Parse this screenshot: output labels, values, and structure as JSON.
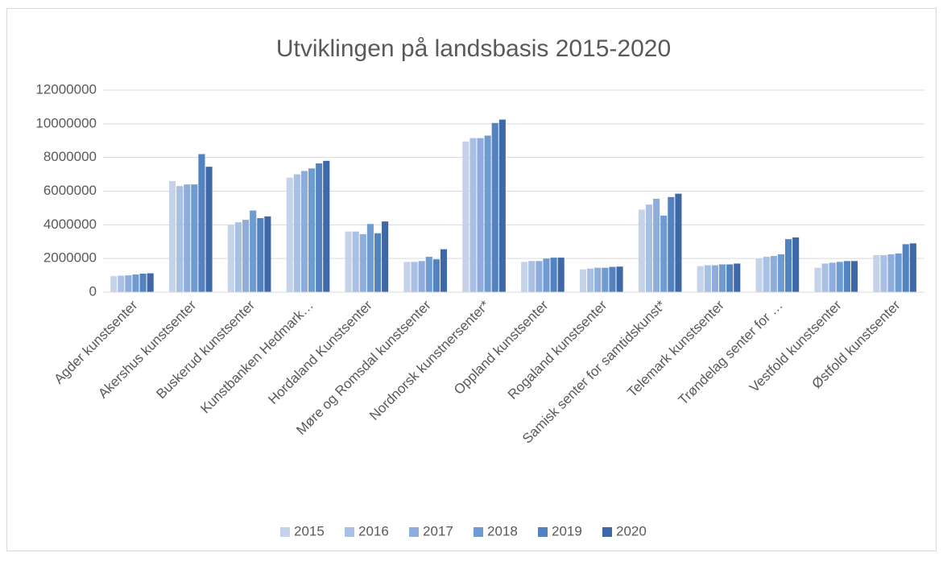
{
  "chart_data": {
    "type": "bar",
    "title": "Utviklingen på landsbasis 2015-2020",
    "categories": [
      "Agder kunstsenter",
      "Akershus kunstsenter",
      "Buskerud kunstsenter",
      "Kunstbanken Hedmark…",
      "Hordaland Kunstsenter",
      "Møre og Romsdal kunstsenter",
      "Nordnorsk kunstnersenter*",
      "Oppland kunstsenter",
      "Rogaland kunstsenter",
      "Samisk senter for samtidskunst*",
      "Telemark kunstsenter",
      "Trøndelag senter for …",
      "Vestfold kunstsenter",
      "Østfold kunstsenter"
    ],
    "series": [
      {
        "name": "2015",
        "color": "#c5d3ea",
        "values": [
          950000,
          6600000,
          4000000,
          6800000,
          3600000,
          1800000,
          8950000,
          1800000,
          1350000,
          4900000,
          1550000,
          2000000,
          1450000,
          2200000
        ]
      },
      {
        "name": "2016",
        "color": "#a9c0e5",
        "values": [
          980000,
          6300000,
          4150000,
          7000000,
          3600000,
          1800000,
          9150000,
          1850000,
          1400000,
          5200000,
          1600000,
          2100000,
          1700000,
          2200000
        ]
      },
      {
        "name": "2017",
        "color": "#8eaddd",
        "values": [
          1000000,
          6400000,
          4300000,
          7200000,
          3450000,
          1850000,
          9150000,
          1850000,
          1450000,
          5550000,
          1600000,
          2150000,
          1750000,
          2250000
        ]
      },
      {
        "name": "2018",
        "color": "#6f9bd3",
        "values": [
          1050000,
          6400000,
          4850000,
          7350000,
          4050000,
          2100000,
          9300000,
          2000000,
          1450000,
          4550000,
          1650000,
          2250000,
          1800000,
          2300000
        ]
      },
      {
        "name": "2019",
        "color": "#5282c0",
        "values": [
          1100000,
          8200000,
          4400000,
          7650000,
          3500000,
          1950000,
          10050000,
          2050000,
          1500000,
          5650000,
          1650000,
          3150000,
          1850000,
          2850000
        ]
      },
      {
        "name": "2020",
        "color": "#3e68a8",
        "values": [
          1120000,
          7450000,
          4500000,
          7800000,
          4200000,
          2550000,
          10250000,
          2050000,
          1520000,
          5850000,
          1700000,
          3250000,
          1850000,
          2900000
        ]
      }
    ],
    "ylim": [
      0,
      12000000
    ],
    "yticks": [
      0,
      2000000,
      4000000,
      6000000,
      8000000,
      10000000,
      12000000
    ],
    "grid": true,
    "legend": "bottom"
  }
}
